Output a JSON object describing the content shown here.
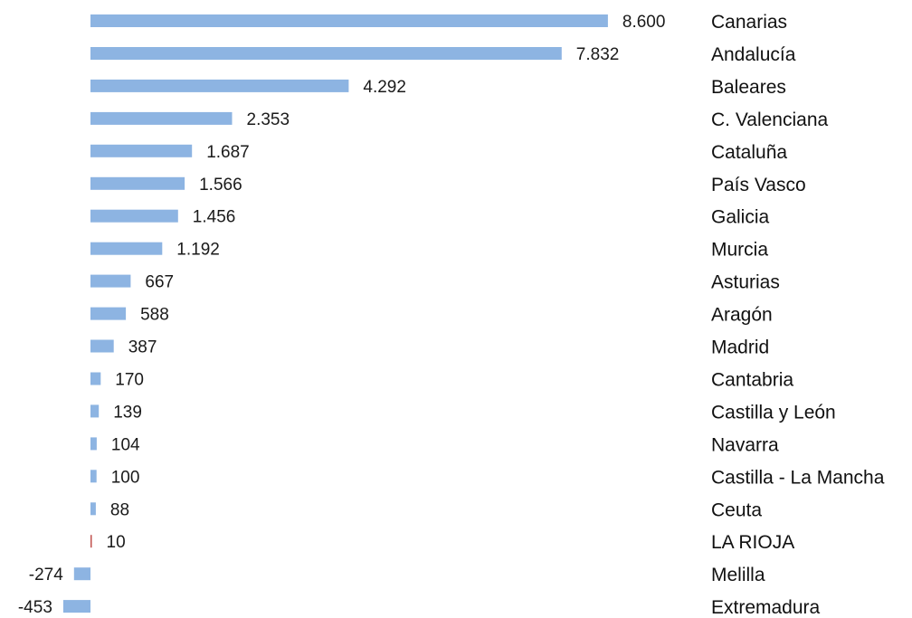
{
  "chart_data": {
    "type": "bar",
    "orientation": "horizontal",
    "categories": [
      "Canarias",
      "Andalucía",
      "Baleares",
      "C. Valenciana",
      "Cataluña",
      "País Vasco",
      "Galicia",
      "Murcia",
      "Asturias",
      "Aragón",
      "Madrid",
      "Cantabria",
      "Castilla y León",
      "Navarra",
      "Castilla - La Mancha",
      "Ceuta",
      "LA RIOJA",
      "Melilla",
      "Extremadura"
    ],
    "values": [
      8600,
      7832,
      4292,
      2353,
      1687,
      1566,
      1456,
      1192,
      667,
      588,
      387,
      170,
      139,
      104,
      100,
      88,
      10,
      -274,
      -453
    ],
    "value_labels": [
      "8.600",
      "7.832",
      "4.292",
      "2.353",
      "1.687",
      "1.566",
      "1.456",
      "1.192",
      "667",
      "588",
      "387",
      "170",
      "139",
      "104",
      "100",
      "88",
      "10",
      "-274",
      "-453"
    ],
    "title": "",
    "xlabel": "",
    "ylabel": "",
    "xlim": [
      -453,
      8600
    ],
    "grid": false,
    "legend": "none",
    "colors": {
      "bar": "#8db4e2",
      "highlight_bar": "#c0504d",
      "label_text": "#1a1a1a"
    },
    "highlight_category": "LA RIOJA"
  }
}
